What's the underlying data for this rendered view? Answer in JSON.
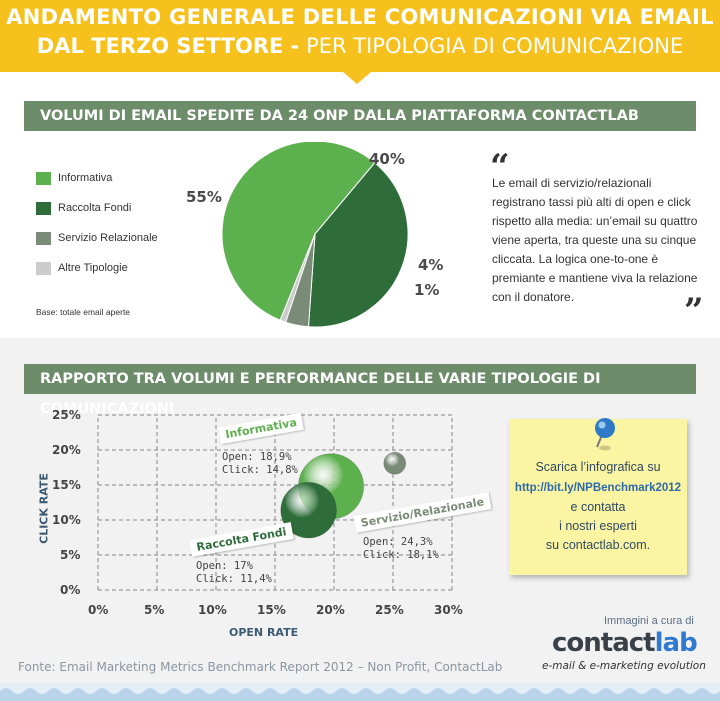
{
  "header": {
    "title_line1": "ANDAMENTO GENERALE DELLE COMUNICAZIONI VIA EMAIL",
    "title_line2_bold": "DAL TERZO SETTORE -",
    "title_line2_rest": "PER TIPOLOGIA DI COMUNICAZIONE"
  },
  "section1": {
    "title": "VOLUMI DI EMAIL SPEDITE DA 24 ONP DALLA PIATTAFORMA CONTACTLAB",
    "note": "Base: totale email aperte",
    "quote": "Le email di servizio/relazionali registrano tassi più alti di open e click rispetto alla media: un’email su quattro viene aperta, tra queste una su cinque cliccata. La logica one-to-one è premiante e mantiene viva la relazione con il donatore.",
    "open_quote": "“",
    "close_quote": "”"
  },
  "section2": {
    "title": "RAPPORTO TRA VOLUMI E PERFORMANCE DELLE VARIE TIPOLOGIE DI COMUNICAZIONI"
  },
  "chart_data": [
    {
      "type": "pie",
      "categories": [
        "Informativa",
        "Raccolta Fondi",
        "Servizio Relazionale",
        "Altre Tipologie"
      ],
      "values": [
        55,
        40,
        4,
        1
      ],
      "value_labels": [
        "55%",
        "40%",
        "4%",
        "1%"
      ],
      "colors": [
        "#5cb04d",
        "#2e6d3a",
        "#7a8b77",
        "#cccccc"
      ],
      "legend_position": "left"
    },
    {
      "type": "scatter",
      "xlabel": "OPEN RATE",
      "ylabel": "CLICK RATE",
      "xlim": [
        0,
        30
      ],
      "ylim": [
        0,
        25
      ],
      "x_ticks": [
        "0%",
        "5%",
        "10%",
        "15%",
        "20%",
        "25%",
        "30%"
      ],
      "y_ticks": [
        "0%",
        "5%",
        "10%",
        "15%",
        "20%",
        "25%"
      ],
      "grid": true,
      "points": [
        {
          "name": "Informativa",
          "x": 18.9,
          "y": 14.8,
          "volume": 55,
          "color": "#5cb04d",
          "open_label": "Open: 18,9%",
          "click_label": "Click: 14,8%"
        },
        {
          "name": "Raccolta Fondi",
          "x": 17,
          "y": 11.4,
          "volume": 40,
          "color": "#2e6d3a",
          "open_label": "Open: 17%",
          "click_label": "Click: 11,4%"
        },
        {
          "name": "Servizio/Relazionale",
          "x": 24.3,
          "y": 18.1,
          "volume": 4,
          "color": "#7a8b77",
          "open_label": "Open: 24,3%",
          "click_label": "Click: 18,1%"
        }
      ]
    }
  ],
  "sticky": {
    "line1": "Scarica l’infografica su",
    "link": "http://bit.ly/NPBenchmark2012",
    "line3": "e contatta",
    "line4": "i nostri esperti",
    "line5": "su contactlab.com."
  },
  "footer": {
    "credit": "Immagini a cura di",
    "logo_a": "contact",
    "logo_b": "lab",
    "tagline": "e-mail & e-marketing evolution",
    "source": "Fonte: Email Marketing Metrics Benchmark Report 2012 – Non Profit, ContactLab"
  }
}
